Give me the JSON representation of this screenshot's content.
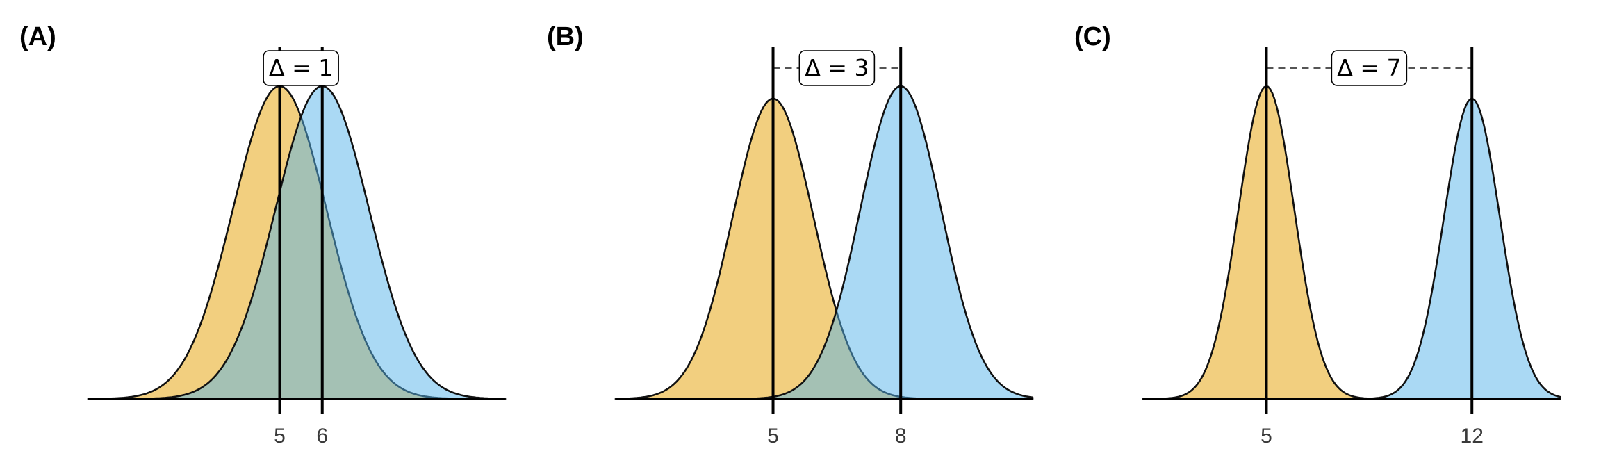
{
  "chart_data": [
    {
      "type": "area",
      "panel": "(A)",
      "title": "",
      "xlabel": "",
      "ylabel": "",
      "xlim": [
        0.5,
        10.3
      ],
      "x_ticks": [
        5,
        6
      ],
      "annotation": "Δ = 1",
      "grid": false,
      "series": [
        {
          "mean": 5,
          "sd": 1.1,
          "scale": 1.0,
          "color": "#E69F00"
        },
        {
          "mean": 6,
          "sd": 1.1,
          "scale": 1.0,
          "color": "#56B4E9"
        }
      ]
    },
    {
      "type": "area",
      "panel": "(B)",
      "title": "",
      "xlabel": "",
      "ylabel": "",
      "xlim": [
        1.3,
        11.1
      ],
      "x_ticks": [
        5,
        8
      ],
      "annotation": "Δ = 3",
      "grid": false,
      "series": [
        {
          "mean": 5,
          "sd": 0.95,
          "scale": 0.96,
          "color": "#E69F00"
        },
        {
          "mean": 8,
          "sd": 0.95,
          "scale": 1.0,
          "color": "#56B4E9"
        }
      ]
    },
    {
      "type": "area",
      "panel": "(C)",
      "title": "",
      "xlabel": "",
      "ylabel": "",
      "xlim": [
        0.8,
        15.0
      ],
      "x_ticks": [
        5,
        12
      ],
      "annotation": "Δ = 7",
      "grid": false,
      "series": [
        {
          "mean": 5,
          "sd": 0.95,
          "scale": 1.0,
          "color": "#E69F00"
        },
        {
          "mean": 12,
          "sd": 0.95,
          "scale": 0.96,
          "color": "#56B4E9"
        }
      ]
    }
  ]
}
